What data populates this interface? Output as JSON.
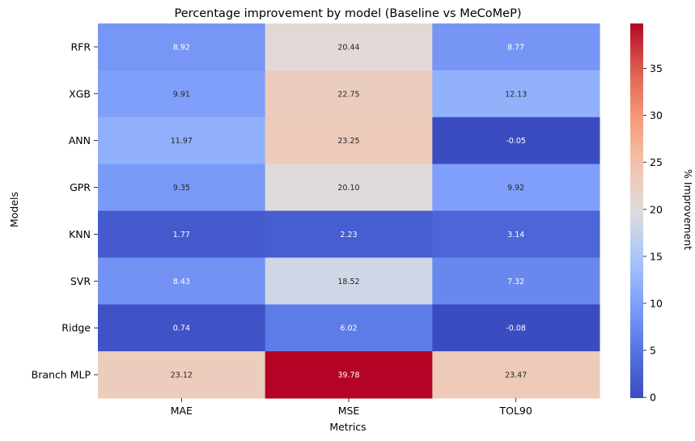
{
  "chart_data": {
    "type": "heatmap",
    "title": "Percentage improvement by model (Baseline vs MeCoMeP)",
    "xlabel": "Metrics",
    "ylabel": "Models",
    "x": [
      "MAE",
      "MSE",
      "TOL90"
    ],
    "y": [
      "RFR",
      "XGB",
      "ANN",
      "GPR",
      "KNN",
      "SVR",
      "Ridge",
      "Branch MLP"
    ],
    "values": [
      [
        8.92,
        20.44,
        8.77
      ],
      [
        9.91,
        22.75,
        12.13
      ],
      [
        11.97,
        23.25,
        -0.05
      ],
      [
        9.35,
        20.1,
        9.92
      ],
      [
        1.77,
        2.23,
        3.14
      ],
      [
        8.43,
        18.52,
        7.32
      ],
      [
        0.74,
        6.02,
        -0.08
      ],
      [
        23.12,
        39.78,
        23.47
      ]
    ],
    "value_labels": [
      [
        "8.92",
        "20.44",
        "8.77"
      ],
      [
        "9.91",
        "22.75",
        "12.13"
      ],
      [
        "11.97",
        "23.25",
        "-0.05"
      ],
      [
        "9.35",
        "20.10",
        "9.92"
      ],
      [
        "1.77",
        "2.23",
        "3.14"
      ],
      [
        "8.43",
        "18.52",
        "7.32"
      ],
      [
        "0.74",
        "6.02",
        "-0.08"
      ],
      [
        "23.12",
        "39.78",
        "23.47"
      ]
    ],
    "colormap": "coolwarm",
    "colorbar": {
      "label": "% Improvement",
      "range": [
        -0.08,
        39.78
      ],
      "ticks": [
        "0",
        "5",
        "10",
        "15",
        "20",
        "25",
        "30",
        "35"
      ],
      "tick_values": [
        0,
        5,
        10,
        15,
        20,
        25,
        30,
        35
      ]
    }
  }
}
